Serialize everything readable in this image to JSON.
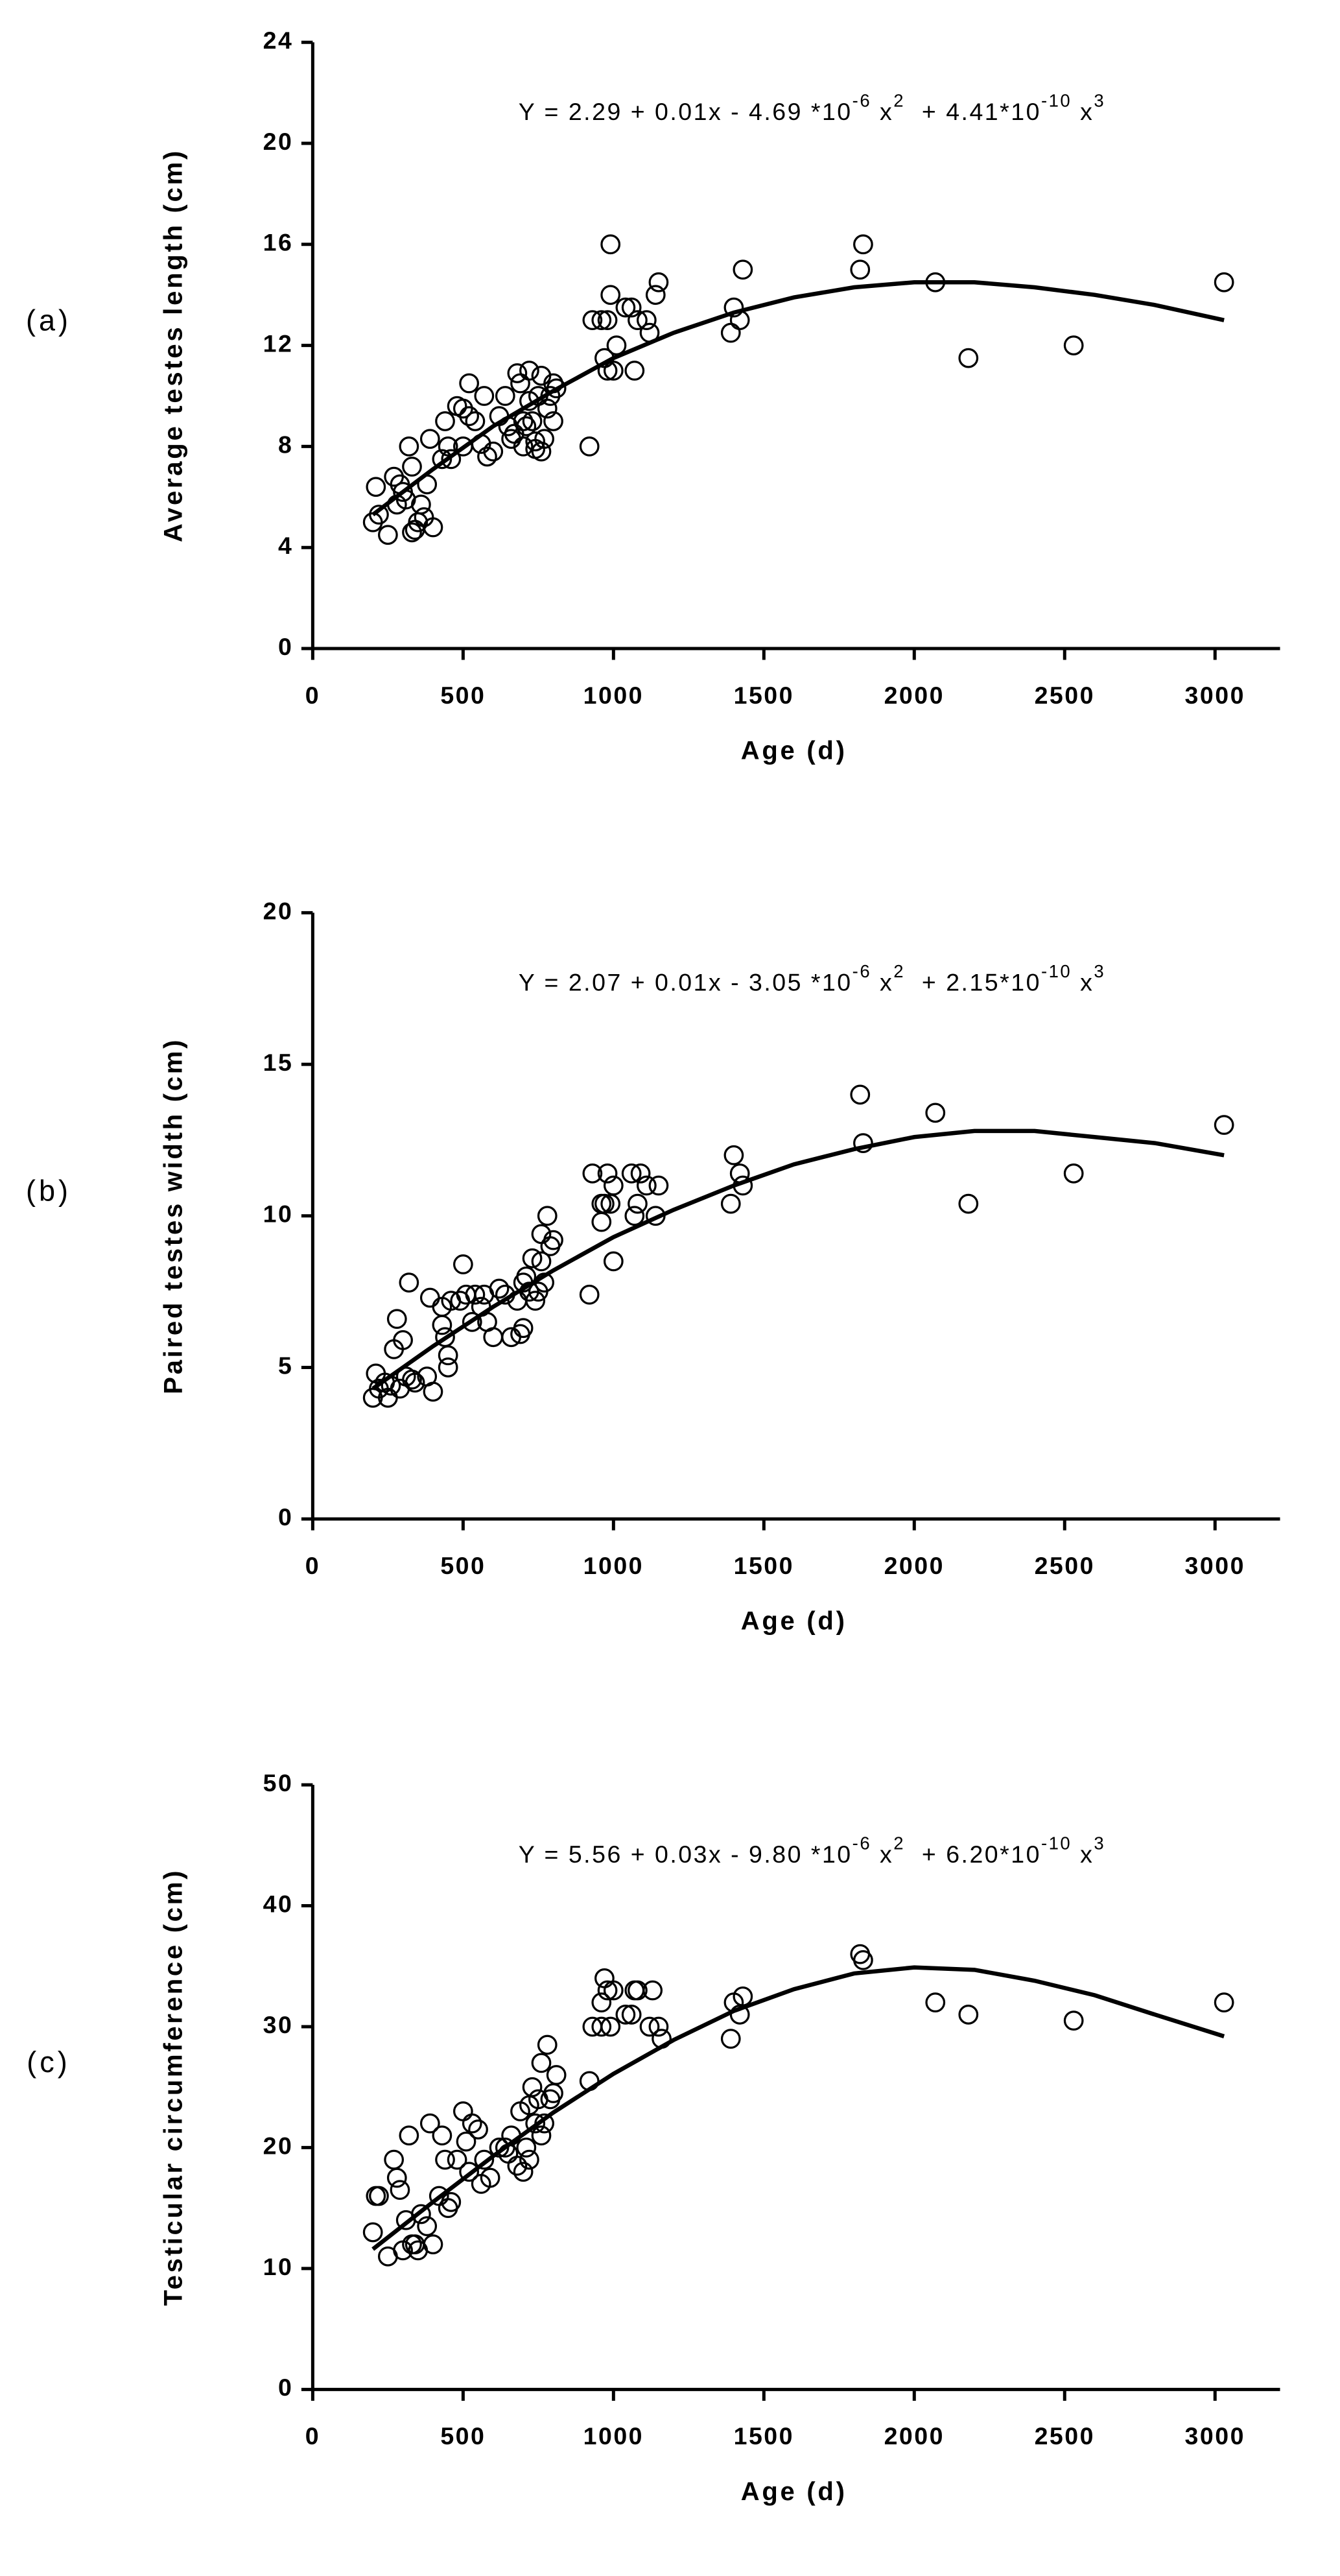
{
  "chart_data": [
    {
      "type": "scatter",
      "panel": "(a)",
      "xlabel": "Age (d)",
      "ylabel": "Average testes length (cm)",
      "equation": [
        {
          "text": "Y = 2.29 + 0.01x - 4.69 *10"
        },
        {
          "sup": "-6"
        },
        {
          "text": " x"
        },
        {
          "sup": "2"
        },
        {
          "text": "  + 4.41*10"
        },
        {
          "sup": "-10"
        },
        {
          "text": " x"
        },
        {
          "sup": "3"
        }
      ],
      "xlim": [
        0,
        3200
      ],
      "ylim": [
        0,
        24
      ],
      "xticks": [
        0,
        500,
        1000,
        1500,
        2000,
        2500,
        3000
      ],
      "yticks": [
        0,
        4,
        8,
        12,
        16,
        20,
        24
      ],
      "points": {
        "x": [
          200,
          210,
          220,
          250,
          270,
          280,
          290,
          300,
          310,
          320,
          330,
          330,
          340,
          350,
          360,
          370,
          380,
          390,
          400,
          430,
          440,
          450,
          460,
          480,
          500,
          500,
          520,
          520,
          540,
          560,
          570,
          580,
          600,
          620,
          640,
          650,
          660,
          670,
          680,
          690,
          700,
          700,
          710,
          720,
          720,
          730,
          740,
          740,
          750,
          760,
          760,
          770,
          780,
          790,
          800,
          800,
          810,
          920,
          930,
          960,
          970,
          980,
          980,
          990,
          990,
          1000,
          1010,
          1040,
          1060,
          1070,
          1080,
          1110,
          1120,
          1140,
          1150,
          1390,
          1400,
          1420,
          1430,
          1820,
          1830,
          2070,
          2180,
          2530,
          3030
        ],
        "y": [
          5.0,
          6.4,
          5.3,
          4.5,
          6.8,
          5.7,
          6.5,
          6.2,
          5.9,
          8.0,
          7.2,
          4.6,
          4.7,
          5.0,
          5.7,
          5.2,
          6.5,
          8.3,
          4.8,
          7.5,
          9.0,
          8.0,
          7.5,
          9.6,
          9.5,
          8.0,
          9.2,
          10.5,
          9.0,
          8.1,
          10.0,
          7.6,
          7.8,
          9.2,
          10.0,
          8.8,
          8.3,
          8.5,
          10.9,
          10.5,
          9.0,
          8.0,
          8.8,
          9.8,
          11.0,
          9.0,
          8.2,
          7.9,
          10.0,
          10.8,
          7.8,
          8.3,
          9.5,
          10.0,
          10.5,
          9.0,
          10.3,
          8.0,
          13.0,
          13.0,
          11.5,
          11.0,
          13.0,
          16.0,
          14.0,
          11.0,
          12.0,
          13.5,
          13.5,
          11.0,
          13.0,
          13.0,
          12.5,
          14.0,
          14.5,
          12.5,
          13.5,
          13.0,
          15.0,
          15.0,
          16.0,
          14.5,
          11.5,
          12.0,
          14.5
        ]
      },
      "fit": {
        "x": [
          200,
          400,
          600,
          800,
          1000,
          1200,
          1400,
          1600,
          1800,
          2000,
          2200,
          2400,
          2600,
          2800,
          3030
        ],
        "y": [
          5.3,
          7.1,
          8.8,
          10.2,
          11.5,
          12.5,
          13.3,
          13.9,
          14.3,
          14.5,
          14.5,
          14.3,
          14.0,
          13.6,
          13.0
        ]
      }
    },
    {
      "type": "scatter",
      "panel": "(b)",
      "xlabel": "Age (d)",
      "ylabel": "Paired testes width (cm)",
      "equation": [
        {
          "text": "Y = 2.07 + 0.01x - 3.05 *10"
        },
        {
          "sup": "-6"
        },
        {
          "text": " x"
        },
        {
          "sup": "2"
        },
        {
          "text": "  + 2.15*10"
        },
        {
          "sup": "-10"
        },
        {
          "text": " x"
        },
        {
          "sup": "3"
        }
      ],
      "xlim": [
        0,
        3200
      ],
      "ylim": [
        0,
        20
      ],
      "xticks": [
        0,
        500,
        1000,
        1500,
        2000,
        2500,
        3000
      ],
      "yticks": [
        0,
        5,
        10,
        15,
        20
      ],
      "points": {
        "x": [
          200,
          210,
          220,
          240,
          250,
          260,
          270,
          280,
          290,
          300,
          310,
          320,
          330,
          340,
          380,
          390,
          400,
          430,
          430,
          440,
          450,
          450,
          460,
          490,
          500,
          510,
          530,
          540,
          560,
          570,
          580,
          600,
          620,
          640,
          660,
          680,
          690,
          700,
          700,
          710,
          720,
          730,
          740,
          750,
          760,
          760,
          770,
          780,
          790,
          800,
          920,
          930,
          960,
          960,
          970,
          980,
          990,
          1000,
          1000,
          1060,
          1070,
          1080,
          1090,
          1110,
          1140,
          1150,
          1390,
          1400,
          1420,
          1430,
          1820,
          1830,
          2070,
          2180,
          2530,
          3030
        ],
        "y": [
          4.0,
          4.8,
          4.3,
          4.5,
          4.0,
          4.4,
          5.6,
          6.6,
          4.3,
          5.9,
          4.7,
          7.8,
          4.6,
          4.5,
          4.7,
          7.3,
          4.2,
          7.0,
          6.4,
          6.0,
          5.0,
          5.4,
          7.2,
          7.2,
          8.4,
          7.4,
          6.5,
          7.4,
          7.0,
          7.4,
          6.5,
          6.0,
          7.6,
          7.4,
          6.0,
          7.2,
          6.1,
          6.3,
          7.8,
          8.0,
          7.5,
          8.6,
          7.2,
          7.5,
          8.5,
          9.4,
          7.8,
          10.0,
          9.0,
          9.2,
          7.4,
          11.4,
          9.8,
          10.4,
          10.4,
          11.4,
          10.4,
          8.5,
          11.0,
          11.4,
          10.0,
          10.4,
          11.4,
          11.0,
          10.0,
          11.0,
          10.4,
          12.0,
          11.4,
          11.0,
          14.0,
          12.4,
          13.4,
          10.4,
          11.4,
          13.0
        ]
      },
      "fit": {
        "x": [
          200,
          400,
          600,
          800,
          1000,
          1200,
          1400,
          1600,
          1800,
          2000,
          2200,
          2400,
          2600,
          2800,
          3030
        ],
        "y": [
          4.3,
          5.7,
          7.0,
          8.2,
          9.3,
          10.2,
          11.0,
          11.7,
          12.2,
          12.6,
          12.8,
          12.8,
          12.6,
          12.4,
          12.0
        ]
      }
    },
    {
      "type": "scatter",
      "panel": "(c)",
      "xlabel": "Age (d)",
      "ylabel": "Testicular circumference (cm)",
      "equation": [
        {
          "text": "Y = 5.56 + 0.03x - 9.80 *10"
        },
        {
          "sup": "-6"
        },
        {
          "text": " x"
        },
        {
          "sup": "2"
        },
        {
          "text": "  + 6.20*10"
        },
        {
          "sup": "-10"
        },
        {
          "text": " x"
        },
        {
          "sup": "3"
        }
      ],
      "xlim": [
        0,
        3200
      ],
      "ylim": [
        0,
        50
      ],
      "xticks": [
        0,
        500,
        1000,
        1500,
        2000,
        2500,
        3000
      ],
      "yticks": [
        0,
        10,
        20,
        30,
        40,
        50
      ],
      "points": {
        "x": [
          200,
          210,
          220,
          250,
          270,
          280,
          290,
          300,
          310,
          320,
          330,
          340,
          350,
          360,
          380,
          390,
          400,
          420,
          430,
          440,
          450,
          460,
          480,
          500,
          510,
          520,
          530,
          550,
          560,
          570,
          590,
          620,
          640,
          650,
          660,
          680,
          690,
          700,
          710,
          720,
          720,
          730,
          740,
          750,
          760,
          760,
          770,
          780,
          790,
          800,
          810,
          920,
          930,
          960,
          960,
          970,
          980,
          990,
          1000,
          1040,
          1060,
          1070,
          1080,
          1120,
          1130,
          1150,
          1160,
          1390,
          1400,
          1420,
          1430,
          1820,
          1830,
          2070,
          2180,
          2530,
          3030
        ],
        "y": [
          13,
          16,
          16,
          11,
          19,
          17.5,
          16.5,
          11.5,
          14,
          21,
          12,
          12,
          11.5,
          14.5,
          13.5,
          22,
          12,
          16,
          21,
          19,
          15,
          15.5,
          19,
          23,
          20.5,
          18,
          22,
          21.5,
          17,
          19,
          17.5,
          20,
          20,
          19.5,
          21,
          18.5,
          23,
          18,
          20,
          19,
          23.5,
          25,
          22,
          24,
          21,
          27,
          22,
          28.5,
          24,
          24.5,
          26,
          25.5,
          30,
          32,
          30,
          34,
          33,
          30,
          33,
          31,
          31,
          33,
          33,
          30,
          33,
          30,
          29,
          29,
          32,
          31,
          32.5,
          36,
          35.5,
          32,
          31,
          30.5,
          32
        ]
      },
      "fit": {
        "x": [
          200,
          400,
          600,
          800,
          1000,
          1200,
          1400,
          1600,
          1800,
          2000,
          2200,
          2400,
          2600,
          2800,
          3030
        ],
        "y": [
          11.6,
          15.5,
          19.3,
          22.9,
          26.1,
          28.9,
          31.3,
          33.1,
          34.4,
          34.9,
          34.7,
          33.8,
          32.6,
          31.0,
          29.2
        ]
      }
    }
  ]
}
